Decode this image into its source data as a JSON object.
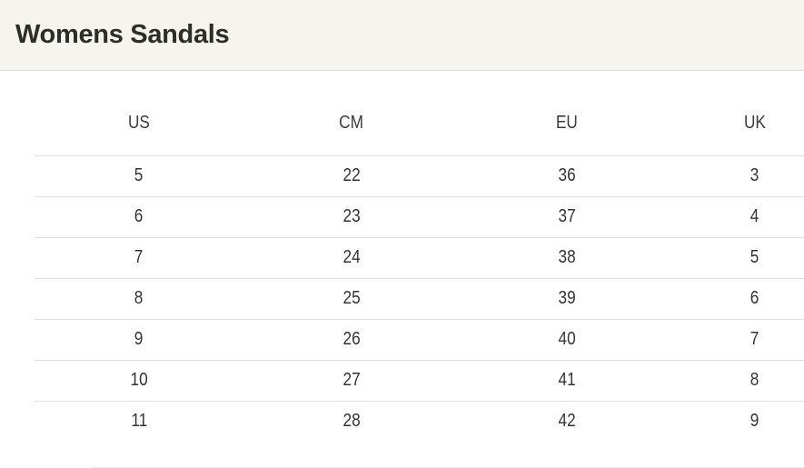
{
  "header": {
    "title": "Womens Sandals"
  },
  "size_chart": {
    "columns": [
      "US",
      "CM",
      "EU",
      "UK"
    ],
    "rows": [
      [
        "5",
        "22",
        "36",
        "3"
      ],
      [
        "6",
        "23",
        "37",
        "4"
      ],
      [
        "7",
        "24",
        "38",
        "5"
      ],
      [
        "8",
        "25",
        "39",
        "6"
      ],
      [
        "9",
        "26",
        "40",
        "7"
      ],
      [
        "10",
        "27",
        "41",
        "8"
      ],
      [
        "11",
        "28",
        "42",
        "9"
      ]
    ]
  },
  "colors": {
    "page_background": "#ffffff",
    "header_background": "#f5f4ee",
    "header_border": "#e4e1d8",
    "title_text": "#2e2d28",
    "column_header_text": "#3b3b3b",
    "cell_text": "#333333",
    "row_border": "#e0e0e0"
  }
}
